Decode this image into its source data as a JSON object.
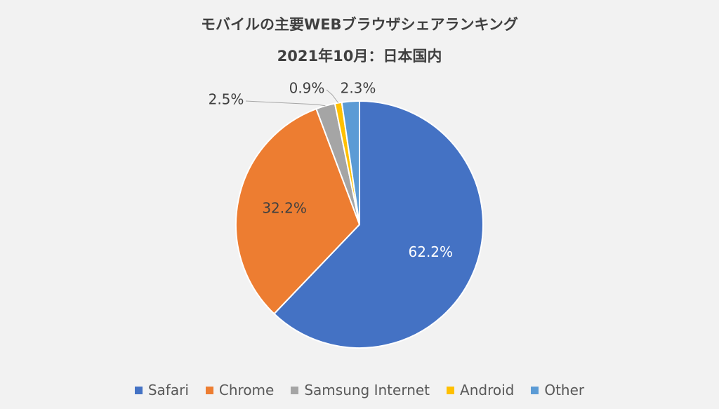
{
  "chart_data": {
    "type": "pie",
    "title": "モバイルの主要WEBブラウザシェアランキング",
    "subtitle": "2021年10月：日本国内",
    "legend_position": "bottom",
    "start_angle": "12 o'clock, clockwise",
    "slices": [
      {
        "label": "Safari",
        "value": 62.2,
        "value_label": "62.2%",
        "color": "#4472c4",
        "label_color": "#ffffff",
        "label_placement": "inside"
      },
      {
        "label": "Chrome",
        "value": 32.2,
        "value_label": "32.2%",
        "color": "#ed7d31",
        "label_color": "#404040",
        "label_placement": "inside"
      },
      {
        "label": "Samsung Internet",
        "value": 2.5,
        "value_label": "2.5%",
        "color": "#a5a5a5",
        "label_color": "#404040",
        "label_placement": "outside"
      },
      {
        "label": "Android",
        "value": 0.9,
        "value_label": "0.9%",
        "color": "#ffc000",
        "label_color": "#404040",
        "label_placement": "outside"
      },
      {
        "label": "Other",
        "value": 2.3,
        "value_label": "2.3%",
        "color": "#5b9bd5",
        "label_color": "#404040",
        "label_placement": "outside"
      }
    ]
  }
}
